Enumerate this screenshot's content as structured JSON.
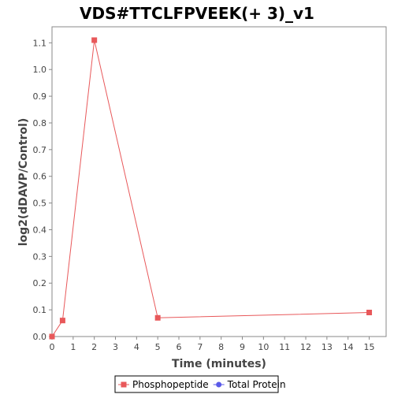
{
  "chart_data": {
    "type": "line",
    "title": "VDS#TTCLFPVEEK(+ 3)_v1",
    "xlabel": "Time (minutes)",
    "ylabel": "log2(dDAVP/Control)",
    "xlim": [
      0,
      15.8
    ],
    "ylim": [
      0,
      1.16
    ],
    "x_ticks": [
      "0",
      "1",
      "2",
      "3",
      "4",
      "5",
      "6",
      "7",
      "8",
      "9",
      "10",
      "11",
      "12",
      "13",
      "14",
      "15"
    ],
    "y_ticks": [
      "0.0",
      "0.1",
      "0.2",
      "0.3",
      "0.4",
      "0.5",
      "0.6",
      "0.7",
      "0.8",
      "0.9",
      "1.0",
      "1.1"
    ],
    "grid": false,
    "legend_position": "bottom-center",
    "series": [
      {
        "name": "Phosphopeptide",
        "color": "#e8585a",
        "marker": "square",
        "x": [
          0,
          0.5,
          2,
          5,
          15
        ],
        "y": [
          0.0,
          0.06,
          1.11,
          0.07,
          0.09
        ]
      },
      {
        "name": "Total Protein",
        "color": "#5a5ae8",
        "marker": "circle",
        "x": [],
        "y": []
      }
    ]
  }
}
